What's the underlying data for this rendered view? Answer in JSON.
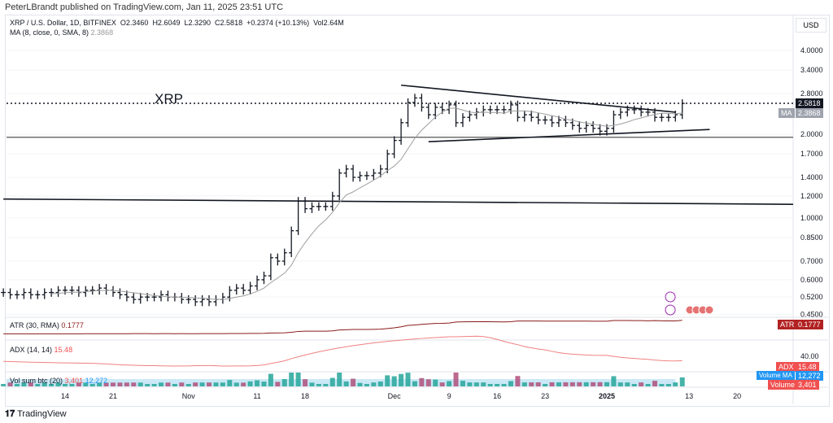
{
  "header": {
    "published": "PeterLBrandt published on TradingView.com, Jan 11, 2025 23:51 UTC"
  },
  "legend": {
    "symbol": "XRP / U.S. Dollar, 1D, BITFINEX",
    "open": "O2.3460",
    "high": "H2.6049",
    "low": "L2.3290",
    "close": "C2.5818",
    "change": "+0.2374 (+10.13%)",
    "vol": "Vol2.64M",
    "ma_label": "MA (8, close, 0, SMA, 8)",
    "ma_value": "2.3868",
    "atr_label": "ATR (30, RMA)",
    "atr_value": "0.1777",
    "adx_label": "ADX (14, 14)",
    "adx_value": "15.48",
    "vol_label": "Vol sum btc (20)",
    "vol_value": "3,401",
    "vol_ma_value": "12,272"
  },
  "annotation": "XRP",
  "axis": {
    "currency": "USD",
    "price_ticks": [
      "4.0000",
      "3.4000",
      "2.8000",
      "2.0000",
      "1.7000",
      "1.4000",
      "1.2000",
      "1.0000",
      "0.8500",
      "0.7000",
      "0.6000",
      "0.5200",
      "0.4500"
    ],
    "adx_tick": "40.00",
    "time_ticks": [
      "14",
      "21",
      "Nov",
      "11",
      "18",
      "Dec",
      "9",
      "16",
      "23",
      "2025",
      "13",
      "20"
    ]
  },
  "tags": {
    "last_price": "2.5818",
    "ma": "MA",
    "ma_price": "2.3868",
    "atr": "ATR",
    "atr_price": "0.1777",
    "adx": "ADX",
    "adx_price": "15.48",
    "volume_ma": "Volume MA",
    "volume_ma_price": "12,272",
    "volume": "Volume",
    "volume_price": "3,401"
  },
  "footer": {
    "logo": "TradingView"
  },
  "colors": {
    "bars": "#131722",
    "ma": "#9e9e9e",
    "atr": "#8b1a1a",
    "adx": "#f08080",
    "vol_up": "#26a69a",
    "vol_down": "#b0507a",
    "vol_ma_area": "#a7d8f0",
    "last_price_tag": "#131722",
    "atr_tag": "#b22222",
    "adx_tag": "#f05050",
    "vol_ma_tag": "#2196f3",
    "vol_tag": "#f05050"
  },
  "chart_data": {
    "type": "ohlc",
    "symbol": "XRP / U.S. Dollar, 1D, BITFINEX",
    "y_scale": "log",
    "ylim": [
      0.45,
      4.5
    ],
    "x_start": "2024-10-05",
    "x_end": "2025-01-11",
    "closes": [
      0.54,
      0.53,
      0.53,
      0.54,
      0.53,
      0.53,
      0.54,
      0.54,
      0.55,
      0.55,
      0.55,
      0.54,
      0.55,
      0.55,
      0.56,
      0.55,
      0.54,
      0.53,
      0.52,
      0.51,
      0.52,
      0.52,
      0.52,
      0.53,
      0.52,
      0.52,
      0.51,
      0.51,
      0.5,
      0.51,
      0.5,
      0.51,
      0.52,
      0.55,
      0.56,
      0.55,
      0.57,
      0.6,
      0.62,
      0.72,
      0.7,
      0.75,
      0.9,
      1.15,
      1.08,
      1.1,
      1.1,
      1.1,
      1.2,
      1.45,
      1.5,
      1.4,
      1.42,
      1.42,
      1.45,
      1.5,
      1.7,
      1.9,
      2.2,
      2.6,
      2.7,
      2.5,
      2.35,
      2.5,
      2.45,
      2.55,
      2.2,
      2.3,
      2.35,
      2.4,
      2.45,
      2.45,
      2.45,
      2.45,
      2.55,
      2.3,
      2.35,
      2.3,
      2.25,
      2.25,
      2.2,
      2.25,
      2.2,
      2.15,
      2.1,
      2.15,
      2.1,
      2.05,
      2.1,
      2.35,
      2.4,
      2.45,
      2.45,
      2.4,
      2.4,
      2.3,
      2.3,
      2.3,
      2.35,
      2.58
    ],
    "horizontal_lines": [
      2.5818,
      1.95
    ],
    "trendlines": [
      {
        "from": [
          "2024-12-02",
          3.0
        ],
        "to": [
          "2025-01-11",
          2.4
        ]
      },
      {
        "from": [
          "2024-12-06",
          1.88
        ],
        "to": [
          "2025-01-16",
          2.08
        ]
      },
      {
        "from": [
          "2024-10-05",
          1.17
        ],
        "to": [
          "2025-02-01",
          1.12
        ]
      }
    ]
  }
}
